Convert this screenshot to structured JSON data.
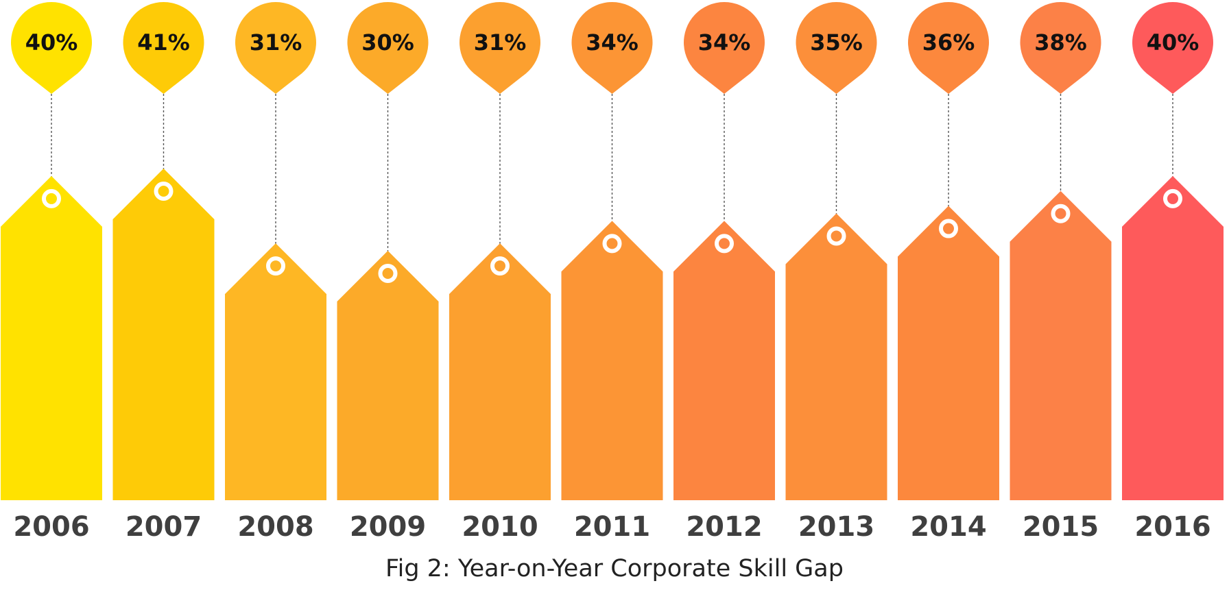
{
  "chart_data": {
    "type": "bar",
    "categories": [
      "2006",
      "2007",
      "2008",
      "2009",
      "2010",
      "2011",
      "2012",
      "2013",
      "2014",
      "2015",
      "2016"
    ],
    "values": [
      40,
      41,
      31,
      30,
      31,
      34,
      34,
      35,
      36,
      38,
      40
    ],
    "value_labels": [
      "40%",
      "41%",
      "31%",
      "30%",
      "31%",
      "34%",
      "34%",
      "35%",
      "36%",
      "38%",
      "40%"
    ],
    "colors": [
      "#ffe200",
      "#fecb07",
      "#feb724",
      "#fcaa29",
      "#fca02f",
      "#fc9535",
      "#fc8540",
      "#fc8f3a",
      "#fc883d",
      "#fc8147",
      "#fe5a5b"
    ],
    "ylim": [
      0,
      41
    ],
    "grid": false,
    "legend": "none"
  },
  "caption": "Fig 2: Year-on-Year Corporate Skill Gap"
}
